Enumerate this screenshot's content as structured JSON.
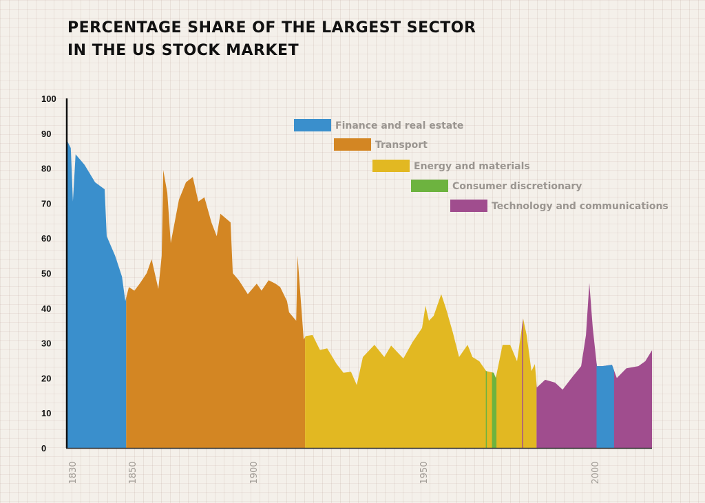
{
  "chart_data": {
    "type": "area",
    "title": "PERCENTAGE SHARE OF THE LARGEST SECTOR IN THE US STOCK MARKET",
    "title_lines": [
      "PERCENTAGE SHARE OF THE LARGEST SECTOR",
      "IN THE US STOCK MARKET"
    ],
    "xlabel": "",
    "ylabel": "",
    "ylim": [
      0,
      100
    ],
    "xlim": [
      1828.2,
      2016.7
    ],
    "yticks": [
      "0",
      "10",
      "20",
      "30",
      "40",
      "50",
      "60",
      "70",
      "80",
      "90",
      "100"
    ],
    "xticks": [
      "1830",
      "1850",
      "1900",
      "1950",
      "2000"
    ],
    "grid": true,
    "legend_placement": "top-center",
    "sectors": [
      {
        "key": "finance",
        "name": "Finance and real estate",
        "color": "#3a8fcc"
      },
      {
        "key": "transport",
        "name": "Transport",
        "color": "#d38623"
      },
      {
        "key": "energy",
        "name": "Energy and materials",
        "color": "#e2b822"
      },
      {
        "key": "consumer",
        "name": "Consumer discretionary",
        "color": "#6db33f"
      },
      {
        "key": "tech",
        "name": "Technology and communications",
        "color": "#a04d8e"
      }
    ],
    "sector_periods": [
      {
        "sector": "finance",
        "from": 1828.2,
        "to": 1848.0
      },
      {
        "sector": "transport",
        "from": 1848.0,
        "to": 1915.2
      },
      {
        "sector": "energy",
        "from": 1915.2,
        "to": 1983.0
      },
      {
        "sector": "consumer",
        "from": 1968.2,
        "to": 1968.5
      },
      {
        "sector": "consumer",
        "from": 1970.0,
        "to": 1971.3
      },
      {
        "sector": "tech",
        "from": 1978.8,
        "to": 1979.1
      },
      {
        "sector": "tech",
        "from": 1983.0,
        "to": 2016.7
      },
      {
        "sector": "finance",
        "from": 2000.5,
        "to": 2005.6
      }
    ],
    "x": [
      1828.2,
      1829.5,
      1830.2,
      1831.1,
      1834.1,
      1837.6,
      1840.8,
      1841.5,
      1844.3,
      1846.6,
      1847.7,
      1848.9,
      1850.9,
      1853.1,
      1856.0,
      1858.0,
      1860.8,
      1862.2,
      1862.8,
      1864.5,
      1865.9,
      1869.3,
      1872.2,
      1875.0,
      1877.3,
      1879.8,
      1882.7,
      1884.9,
      1886.4,
      1890.6,
      1891.5,
      1894.0,
      1897.7,
      1901.0,
      1902.4,
      1904.5,
      1906.5,
      1907.9,
      1909.9,
      1910.5,
      1912.6,
      1913.0,
      1914.8,
      1915.4,
      1917.4,
      1919.6,
      1921.7,
      1924.5,
      1926.5,
      1928.7,
      1930.4,
      1932.2,
      1935.6,
      1938.5,
      1940.5,
      1944.1,
      1946.8,
      1949.6,
      1950.6,
      1951.6,
      1953.0,
      1955.2,
      1956.6,
      1958.6,
      1960.4,
      1962.9,
      1964.3,
      1966.3,
      1968.3,
      1970.5,
      1971.1,
      1973.1,
      1975.3,
      1977.3,
      1979.1,
      1980.1,
      1981.5,
      1982.5,
      1983.1,
      1985.5,
      1988.4,
      1990.6,
      1993.2,
      1996.0,
      1997.4,
      1998.4,
      1999.4,
      2000.6,
      2002.2,
      2005.0,
      2006.4,
      2009.2,
      2012.7,
      2014.7,
      2016.7
    ],
    "values": [
      88,
      85.8,
      70.5,
      84,
      81,
      76,
      74,
      60.6,
      55,
      49,
      42,
      46,
      45,
      47,
      50,
      54,
      45.5,
      55,
      79.5,
      73,
      58.6,
      71,
      76,
      77.5,
      70.5,
      71.7,
      64.5,
      60.6,
      67,
      64.5,
      50,
      48,
      44,
      47,
      45,
      48,
      47,
      46,
      42,
      38.8,
      36.4,
      55,
      31,
      32,
      32.3,
      28,
      28.5,
      24,
      21.5,
      21.8,
      18,
      26,
      29.5,
      26,
      29.3,
      25.6,
      30.3,
      34.3,
      40.7,
      36.4,
      37.8,
      44,
      39.8,
      33,
      26,
      29.5,
      26,
      24.8,
      22,
      21.5,
      20,
      29.5,
      29.5,
      24.8,
      37,
      32.3,
      22,
      24,
      17.3,
      19.5,
      18.7,
      16.7,
      20,
      23.4,
      32.3,
      47.2,
      34.3,
      23.4,
      23.4,
      23.8,
      20,
      22.8,
      23.4,
      24.8,
      28
    ]
  }
}
